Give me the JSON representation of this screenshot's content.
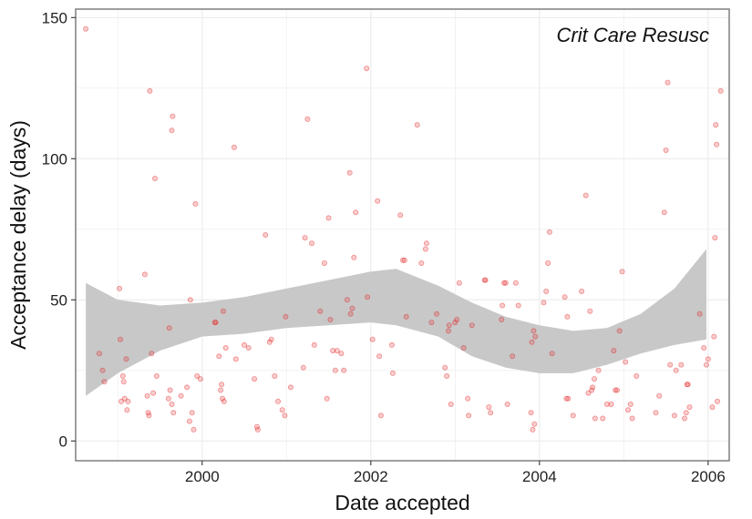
{
  "chart_data": {
    "type": "scatter",
    "title": "",
    "xlabel": "Date accepted",
    "ylabel": "Acceptance delay (days)",
    "annotation": "Crit Care Resusc",
    "xlim": [
      1998.5,
      2006.25
    ],
    "ylim": [
      -7,
      153
    ],
    "x_ticks": [
      2000,
      2002,
      2004,
      2006
    ],
    "x_tick_labels": [
      "2000",
      "2002",
      "2004",
      "2006"
    ],
    "y_ticks": [
      0,
      50,
      100,
      150
    ],
    "y_tick_labels": [
      "0",
      "50",
      "100",
      "150"
    ],
    "grid": true,
    "legend": "none",
    "colors": {
      "point": "#e41a1c",
      "ribbon": "#c8c8c8",
      "frame": "#7f7f7f",
      "grid": "#ebebeb"
    },
    "smooth_band": {
      "x": [
        1998.62,
        1999.0,
        1999.5,
        2000.0,
        2000.5,
        2001.0,
        2001.5,
        2002.0,
        2002.3,
        2002.8,
        2003.2,
        2003.6,
        2004.0,
        2004.4,
        2004.8,
        2005.2,
        2005.6,
        2005.98
      ],
      "lower": [
        16,
        24,
        32,
        37,
        38,
        40,
        41,
        42,
        41,
        37,
        30,
        26,
        24,
        24,
        27,
        31,
        34,
        36
      ],
      "upper": [
        56,
        50,
        48,
        49,
        51,
        54,
        57,
        60,
        61,
        55,
        49,
        44,
        41,
        39,
        40,
        45,
        54,
        68
      ]
    },
    "points": [
      [
        1998.62,
        146
      ],
      [
        1998.78,
        31
      ],
      [
        1998.82,
        25
      ],
      [
        1998.84,
        21
      ],
      [
        1999.02,
        54
      ],
      [
        1999.03,
        36
      ],
      [
        1999.04,
        14
      ],
      [
        1999.06,
        23
      ],
      [
        1999.07,
        21
      ],
      [
        1999.08,
        15
      ],
      [
        1999.1,
        29
      ],
      [
        1999.11,
        11
      ],
      [
        1999.12,
        14
      ],
      [
        1999.32,
        59
      ],
      [
        1999.35,
        16
      ],
      [
        1999.36,
        10
      ],
      [
        1999.37,
        9
      ],
      [
        1999.38,
        124
      ],
      [
        1999.4,
        31
      ],
      [
        1999.42,
        17
      ],
      [
        1999.44,
        93
      ],
      [
        1999.46,
        23
      ],
      [
        1999.6,
        15
      ],
      [
        1999.61,
        40
      ],
      [
        1999.62,
        18
      ],
      [
        1999.64,
        13
      ],
      [
        1999.65,
        115
      ],
      [
        1999.64,
        110
      ],
      [
        1999.66,
        10
      ],
      [
        1999.75,
        16
      ],
      [
        1999.82,
        19
      ],
      [
        1999.85,
        7
      ],
      [
        1999.86,
        50
      ],
      [
        1999.88,
        10
      ],
      [
        1999.9,
        4
      ],
      [
        1999.92,
        84
      ],
      [
        1999.94,
        23
      ],
      [
        1999.98,
        22
      ],
      [
        2000.15,
        42
      ],
      [
        2000.16,
        42
      ],
      [
        2000.2,
        30
      ],
      [
        2000.22,
        18
      ],
      [
        2000.23,
        20
      ],
      [
        2000.24,
        15
      ],
      [
        2000.25,
        46
      ],
      [
        2000.26,
        14
      ],
      [
        2000.28,
        33
      ],
      [
        2000.38,
        104
      ],
      [
        2000.4,
        29
      ],
      [
        2000.5,
        34
      ],
      [
        2000.55,
        33
      ],
      [
        2000.62,
        22
      ],
      [
        2000.65,
        5
      ],
      [
        2000.66,
        4
      ],
      [
        2000.75,
        73
      ],
      [
        2000.8,
        35
      ],
      [
        2000.82,
        36
      ],
      [
        2000.86,
        23
      ],
      [
        2000.9,
        14
      ],
      [
        2000.95,
        11
      ],
      [
        2000.98,
        9
      ],
      [
        2000.99,
        44
      ],
      [
        2001.05,
        19
      ],
      [
        2001.2,
        26
      ],
      [
        2001.22,
        72
      ],
      [
        2001.25,
        114
      ],
      [
        2001.3,
        70
      ],
      [
        2001.33,
        34
      ],
      [
        2001.4,
        46
      ],
      [
        2001.45,
        63
      ],
      [
        2001.48,
        15
      ],
      [
        2001.5,
        79
      ],
      [
        2001.52,
        43
      ],
      [
        2001.55,
        32
      ],
      [
        2001.58,
        25
      ],
      [
        2001.6,
        32
      ],
      [
        2001.65,
        31
      ],
      [
        2001.68,
        25
      ],
      [
        2001.72,
        50
      ],
      [
        2001.75,
        95
      ],
      [
        2001.76,
        45
      ],
      [
        2001.8,
        65
      ],
      [
        2001.78,
        47
      ],
      [
        2001.82,
        81
      ],
      [
        2001.96,
        51
      ],
      [
        2001.95,
        132
      ],
      [
        2002.02,
        36
      ],
      [
        2002.08,
        85
      ],
      [
        2002.1,
        30
      ],
      [
        2002.12,
        9
      ],
      [
        2002.25,
        34
      ],
      [
        2002.26,
        24
      ],
      [
        2002.35,
        80
      ],
      [
        2002.38,
        64
      ],
      [
        2002.4,
        64
      ],
      [
        2002.42,
        44
      ],
      [
        2002.55,
        112
      ],
      [
        2002.6,
        63
      ],
      [
        2002.65,
        68
      ],
      [
        2002.66,
        70
      ],
      [
        2002.72,
        42
      ],
      [
        2002.78,
        45
      ],
      [
        2002.88,
        26
      ],
      [
        2002.9,
        23
      ],
      [
        2002.92,
        39
      ],
      [
        2002.93,
        41
      ],
      [
        2002.95,
        13
      ],
      [
        2003.0,
        42
      ],
      [
        2003.02,
        43
      ],
      [
        2003.05,
        56
      ],
      [
        2003.1,
        33
      ],
      [
        2003.15,
        15
      ],
      [
        2003.16,
        9
      ],
      [
        2003.2,
        41
      ],
      [
        2003.35,
        57
      ],
      [
        2003.36,
        57
      ],
      [
        2003.4,
        12
      ],
      [
        2003.42,
        10
      ],
      [
        2003.55,
        43
      ],
      [
        2003.56,
        48
      ],
      [
        2003.58,
        56
      ],
      [
        2003.6,
        56
      ],
      [
        2003.62,
        13
      ],
      [
        2003.68,
        30
      ],
      [
        2003.72,
        56
      ],
      [
        2003.75,
        48
      ],
      [
        2003.9,
        10
      ],
      [
        2003.91,
        35
      ],
      [
        2003.92,
        4
      ],
      [
        2003.93,
        39
      ],
      [
        2003.94,
        6
      ],
      [
        2003.95,
        37
      ],
      [
        2004.05,
        49
      ],
      [
        2004.08,
        53
      ],
      [
        2004.1,
        63
      ],
      [
        2004.12,
        74
      ],
      [
        2004.15,
        31
      ],
      [
        2004.3,
        51
      ],
      [
        2004.32,
        15
      ],
      [
        2004.33,
        44
      ],
      [
        2004.34,
        15
      ],
      [
        2004.4,
        9
      ],
      [
        2004.5,
        53
      ],
      [
        2004.55,
        87
      ],
      [
        2004.58,
        17
      ],
      [
        2004.6,
        46
      ],
      [
        2004.62,
        18
      ],
      [
        2004.63,
        19
      ],
      [
        2004.65,
        22
      ],
      [
        2004.66,
        8
      ],
      [
        2004.7,
        25
      ],
      [
        2004.75,
        8
      ],
      [
        2004.8,
        13
      ],
      [
        2004.85,
        13
      ],
      [
        2004.88,
        32
      ],
      [
        2004.9,
        18
      ],
      [
        2004.92,
        18
      ],
      [
        2004.95,
        39
      ],
      [
        2004.98,
        60
      ],
      [
        2005.02,
        28
      ],
      [
        2005.05,
        11
      ],
      [
        2005.08,
        13
      ],
      [
        2005.1,
        8
      ],
      [
        2005.15,
        23
      ],
      [
        2005.38,
        10
      ],
      [
        2005.42,
        16
      ],
      [
        2005.48,
        81
      ],
      [
        2005.5,
        103
      ],
      [
        2005.52,
        127
      ],
      [
        2005.55,
        27
      ],
      [
        2005.6,
        9
      ],
      [
        2005.62,
        25
      ],
      [
        2005.68,
        27
      ],
      [
        2005.72,
        8
      ],
      [
        2005.74,
        10
      ],
      [
        2005.75,
        20
      ],
      [
        2005.76,
        20
      ],
      [
        2005.78,
        12
      ],
      [
        2005.9,
        45
      ],
      [
        2005.95,
        33
      ],
      [
        2006.0,
        29
      ],
      [
        2005.98,
        27
      ],
      [
        2006.05,
        12
      ],
      [
        2006.07,
        37
      ],
      [
        2006.08,
        72
      ],
      [
        2006.09,
        112
      ],
      [
        2006.1,
        105
      ],
      [
        2006.11,
        14
      ],
      [
        2006.15,
        124
      ]
    ]
  }
}
